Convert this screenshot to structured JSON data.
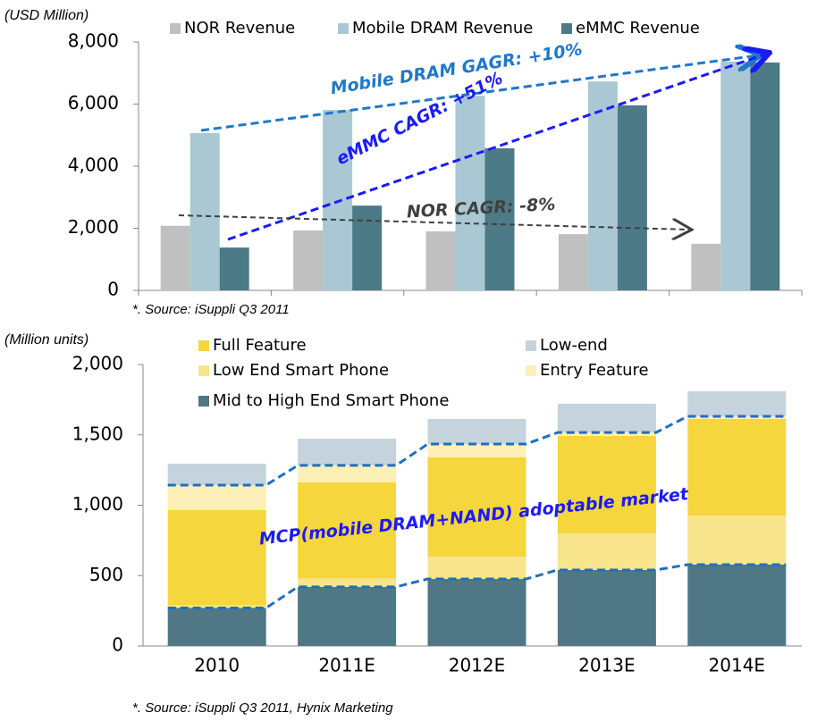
{
  "chart_data": [
    {
      "type": "bar",
      "y_label": "(USD Million)",
      "categories": [
        null,
        null,
        null,
        null,
        null
      ],
      "series": [
        {
          "name": "NOR Revenue",
          "color": "#c0c0c0",
          "values": [
            2080,
            1930,
            1900,
            1810,
            1500
          ]
        },
        {
          "name": "Mobile DRAM Revenue",
          "color": "#a9c8d4",
          "values": [
            5065,
            5810,
            6270,
            6730,
            7370
          ]
        },
        {
          "name": "eMMC Revenue",
          "color": "#4d7a87",
          "values": [
            1380,
            2730,
            4575,
            5960,
            7340
          ]
        }
      ],
      "ylim": [
        0,
        8000
      ],
      "yticks": [
        0,
        {
          "value": 2000,
          "label": "2,000"
        },
        {
          "value": 4000,
          "label": "4,000"
        },
        {
          "value": 6000,
          "label": "6,000"
        },
        {
          "value": 8000,
          "label": "8,000"
        }
      ],
      "annotations": [
        "Mobile DRAM GAGR: +10%",
        "eMMC CAGR: +51%",
        "NOR CAGR: -8%"
      ],
      "source": "*. Source: iSuppli Q3 2011"
    },
    {
      "type": "stacked_bar",
      "y_label": "(Million units)",
      "categories": [
        "2010",
        "2011E",
        "2012E",
        "2013E",
        "2014E"
      ],
      "series": [
        {
          "name": "Mid to High End Smart Phone",
          "color": "#4f7785",
          "values": [
            270,
            420,
            476,
            540,
            578
          ]
        },
        {
          "name": "Low End Smart Phone",
          "color": "#f8e48a",
          "values": [
            20,
            60,
            159,
            260,
            349
          ]
        },
        {
          "name": "Full Feature",
          "color": "#f5d63c",
          "values": [
            675,
            682,
            705,
            692,
            686
          ]
        },
        {
          "name": "Entry Feature",
          "color": "#fcf0b8",
          "values": [
            178,
            121,
            95,
            25,
            19
          ]
        },
        {
          "name": "Low-end",
          "color": "#c5d3dc",
          "values": [
            152,
            190,
            178,
            204,
            178
          ]
        }
      ],
      "ylim": [
        0,
        2000
      ],
      "yticks": [
        0,
        500,
        {
          "value": 1000,
          "label": "1,000"
        },
        {
          "value": 1500,
          "label": "1,500"
        },
        {
          "value": 2000,
          "label": "2,000"
        }
      ],
      "annotations": [
        "MCP(mobile DRAM+NAND) adoptable market"
      ],
      "source": "*. Source: iSuppli Q3 2011, Hynix Marketing"
    }
  ]
}
